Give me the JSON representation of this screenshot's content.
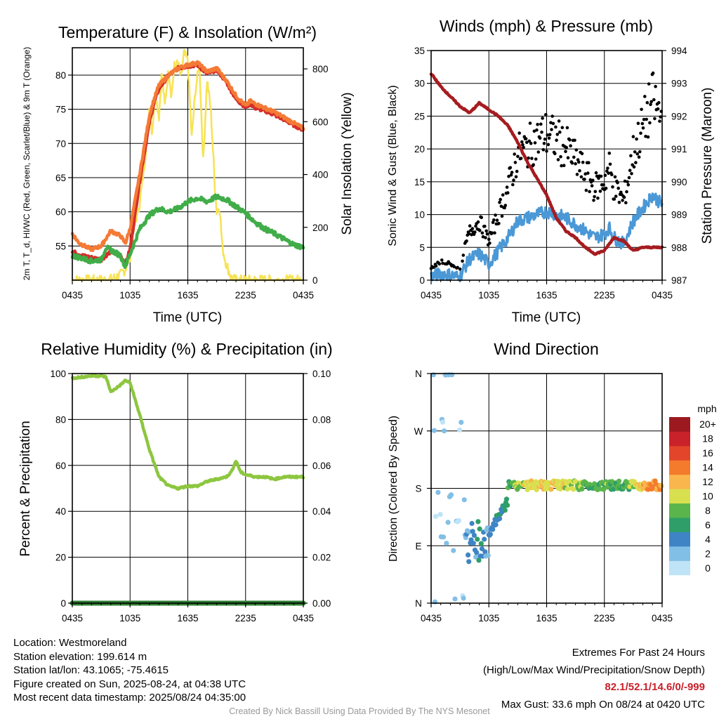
{
  "chart_data": [
    {
      "type": "line",
      "title": "Temperature (F) & Insolation (W/m²)",
      "xlabel": "Time (UTC)",
      "ylabel_left": "2m T, T_d, HI/WC (Red, Green, Scarlet/Blue) & 9m T (Orange)",
      "ylabel_right": "Solar Insolation (Yellow)",
      "x_ticks": [
        "0435",
        "1035",
        "1635",
        "2235",
        "0435"
      ],
      "y_left_ticks": [
        55,
        60,
        65,
        70,
        75,
        80
      ],
      "y_right_ticks": [
        0,
        200,
        400,
        600,
        800
      ],
      "ylim_left": [
        50,
        84
      ],
      "ylim_right": [
        0,
        880
      ],
      "xlim_hours": [
        0,
        24
      ],
      "grid": true,
      "series": [
        {
          "key": "temp2m",
          "color": "#d42e2a",
          "axis": "left",
          "x": [
            0,
            1,
            2,
            3,
            4,
            5,
            5.5,
            6,
            7,
            8,
            8.5,
            9,
            9.5,
            10,
            11,
            12,
            13,
            14,
            15,
            16,
            17,
            18,
            18.5,
            19,
            20,
            21,
            22,
            23,
            24
          ],
          "values": [
            54.2,
            53.6,
            53.3,
            53.0,
            54.2,
            53.6,
            52.3,
            54.5,
            64.5,
            73,
            76,
            78,
            79,
            80,
            81,
            81.3,
            81.5,
            80.2,
            80.8,
            79,
            76.5,
            75.3,
            75.8,
            75.2,
            74.8,
            74.2,
            73.5,
            72.7,
            72.0
          ]
        },
        {
          "key": "temp9m",
          "color": "#f47a36",
          "axis": "left",
          "x": [
            0,
            0.6,
            1,
            2,
            3,
            4,
            5,
            5.5,
            6,
            7,
            8,
            8.5,
            9,
            10,
            11,
            12,
            13,
            14,
            15,
            16,
            17,
            18,
            18.5,
            19,
            20,
            21,
            22,
            23,
            24
          ],
          "values": [
            56.8,
            55.6,
            55.2,
            54.5,
            55.0,
            57.2,
            56.5,
            55.4,
            57.5,
            65.5,
            74,
            76.5,
            78.5,
            80,
            81,
            81.5,
            81.8,
            80.5,
            81,
            79.2,
            77,
            75.5,
            76.2,
            75.8,
            75.2,
            74.6,
            73.8,
            73.0,
            72.2
          ]
        },
        {
          "key": "dewpoint",
          "color": "#41ad49",
          "axis": "left",
          "x": [
            0,
            1,
            2,
            3,
            3.5,
            4,
            5,
            5.5,
            6,
            7,
            8,
            9,
            10,
            11,
            12,
            13,
            14,
            15,
            16,
            17,
            18,
            19,
            20,
            21,
            22,
            23,
            24
          ],
          "values": [
            53.6,
            53.2,
            52.8,
            53.0,
            54.8,
            54.4,
            53.6,
            52.0,
            53.8,
            57.5,
            59.5,
            60.5,
            60.0,
            60.5,
            61.5,
            62.0,
            61.5,
            62.2,
            61.8,
            60.8,
            59.8,
            58.5,
            57.5,
            56.8,
            56.0,
            55.2,
            54.8
          ]
        },
        {
          "key": "insolation",
          "color": "#f7e356",
          "axis": "right",
          "x": [
            0,
            3,
            4,
            5,
            5.5,
            6,
            6.5,
            7,
            7.5,
            8,
            8.3,
            8.6,
            9,
            9.3,
            9.6,
            10,
            10.3,
            10.6,
            11,
            11.3,
            11.6,
            12,
            12.4,
            12.8,
            13.2,
            13.6,
            14,
            14.4,
            14.8,
            15,
            15.3,
            15.6,
            16,
            16.5,
            17,
            18,
            24
          ],
          "values": [
            0,
            0,
            3,
            20,
            40,
            90,
            210,
            290,
            440,
            650,
            560,
            720,
            620,
            790,
            660,
            800,
            700,
            810,
            820,
            760,
            860,
            830,
            540,
            720,
            820,
            450,
            760,
            640,
            360,
            260,
            280,
            120,
            60,
            10,
            0,
            0,
            0
          ]
        }
      ]
    },
    {
      "type": "line",
      "title": "Winds (mph) & Pressure (mb)",
      "xlabel": "Time (UTC)",
      "ylabel_left": "Sonic Wind & Gust (Blue, Black)",
      "ylabel_right": "Station Pressure (Maroon)",
      "x_ticks": [
        "0435",
        "1035",
        "1635",
        "2235",
        "0435"
      ],
      "y_left_ticks": [
        0,
        5,
        10,
        15,
        20,
        25,
        30,
        35
      ],
      "y_right_ticks": [
        987,
        988,
        989,
        990,
        991,
        992,
        993,
        994
      ],
      "ylim_left": [
        0,
        35
      ],
      "ylim_right": [
        987,
        994
      ],
      "xlim_hours": [
        0,
        24
      ],
      "grid": true,
      "series": [
        {
          "key": "wind",
          "color": "#4a98d6",
          "axis": "left",
          "x": [
            0,
            1,
            2,
            3,
            3.5,
            4,
            5,
            6,
            7,
            8,
            9,
            10,
            11,
            12,
            13,
            14,
            15,
            16,
            17,
            18,
            18.5,
            19,
            20,
            21,
            22,
            23,
            24
          ],
          "values": [
            0.5,
            1.0,
            0.8,
            0.4,
            2.0,
            3.2,
            4.0,
            2.5,
            4.5,
            6.5,
            9.0,
            9.5,
            10.0,
            10.5,
            10.0,
            9.5,
            8.5,
            7.5,
            6.5,
            7.0,
            8.0,
            6.5,
            5.5,
            9.0,
            11.0,
            13.0,
            11.5
          ]
        },
        {
          "key": "pressure",
          "color": "#a51c20",
          "axis": "right",
          "x": [
            0,
            0.5,
            1,
            2,
            3,
            4,
            5,
            6,
            7,
            8,
            9,
            10,
            11,
            12,
            13,
            14,
            15,
            16,
            17,
            18,
            19,
            20,
            21,
            22,
            23,
            24
          ],
          "values": [
            993.3,
            993.1,
            992.9,
            992.6,
            992.3,
            992.1,
            992.4,
            992.2,
            992.0,
            991.7,
            991.2,
            990.6,
            990.1,
            989.6,
            988.9,
            988.5,
            988.3,
            988.0,
            987.8,
            987.9,
            988.3,
            988.2,
            987.9,
            988.0,
            988.0,
            988.0
          ]
        }
      ]
    },
    {
      "type": "line",
      "title": "Relative Humidity (%) & Precipitation (in)",
      "ylabel_left": "Percent & Precipitation",
      "x_ticks": [
        "0435",
        "1035",
        "1635",
        "2235",
        "0435"
      ],
      "y_left_ticks": [
        0,
        20,
        40,
        60,
        80,
        100
      ],
      "y_right_ticks": [
        "0.00",
        "0.02",
        "0.04",
        "0.06",
        "0.08",
        "0.10"
      ],
      "ylim_left": [
        0,
        100
      ],
      "ylim_right": [
        0,
        0.1
      ],
      "xlim_hours": [
        0,
        24
      ],
      "grid": true,
      "series": [
        {
          "key": "rh",
          "color": "#8dc63f",
          "axis": "left",
          "x": [
            0,
            1,
            2,
            3,
            3.5,
            4,
            5,
            5.5,
            6,
            7,
            8,
            9,
            10,
            11,
            12,
            13,
            14,
            15,
            16,
            16.5,
            17,
            17.5,
            18,
            19,
            20,
            21,
            22,
            23,
            24
          ],
          "values": [
            98,
            98.5,
            99,
            99,
            98.5,
            92,
            95,
            97,
            96,
            82,
            67,
            55,
            51,
            50,
            51,
            51,
            53,
            54,
            55,
            57,
            62,
            57,
            56,
            55,
            55,
            54,
            55,
            55,
            55
          ]
        },
        {
          "key": "precip",
          "color": "#2e7d32",
          "axis": "right",
          "x": [
            0,
            24
          ],
          "values": [
            0,
            0
          ]
        }
      ]
    },
    {
      "type": "scatter",
      "title": "Wind Direction",
      "ylabel": "Direction (Colored By Speed)",
      "x_ticks": [
        "0435",
        "1035",
        "1635",
        "2235",
        "0435"
      ],
      "y_ticks": [
        "N",
        "E",
        "S",
        "W",
        "N"
      ],
      "ylim_degrees": [
        0,
        360
      ],
      "xlim_hours": [
        0,
        24
      ],
      "grid": true,
      "colorbar": {
        "title": "mph",
        "labels": [
          "0",
          "2",
          "4",
          "6",
          "8",
          "10",
          "12",
          "14",
          "16",
          "18",
          "20+"
        ],
        "colors": [
          "#bfe3f7",
          "#82bfe6",
          "#3f85c5",
          "#2f9e69",
          "#59b54c",
          "#d9e04f",
          "#f9b64d",
          "#f47b2c",
          "#e2452a",
          "#c9222a",
          "#9c1a1f"
        ]
      }
    }
  ],
  "info_left": {
    "location": "Location: Westmoreland",
    "elevation": "Station elevation: 199.614 m",
    "latlon": "Station lat/lon: 43.1065; -75.4615",
    "created": "Figure created on Sun, 2025-08-24, at 04:38 UTC",
    "recent": "Most recent data timestamp: 2025/08/24 04:35:00"
  },
  "info_right": {
    "title": "Extremes For Past 24 Hours",
    "subtitle": "(High/Low/Max Wind/Precipitation/Snow Depth)",
    "values": "82.1/52.1/14.6/0/-999",
    "gust": "Max Gust: 33.6 mph On 08/24 at 0420 UTC"
  },
  "credit": "Created By Nick Bassill Using Data Provided By The NYS Mesonet"
}
